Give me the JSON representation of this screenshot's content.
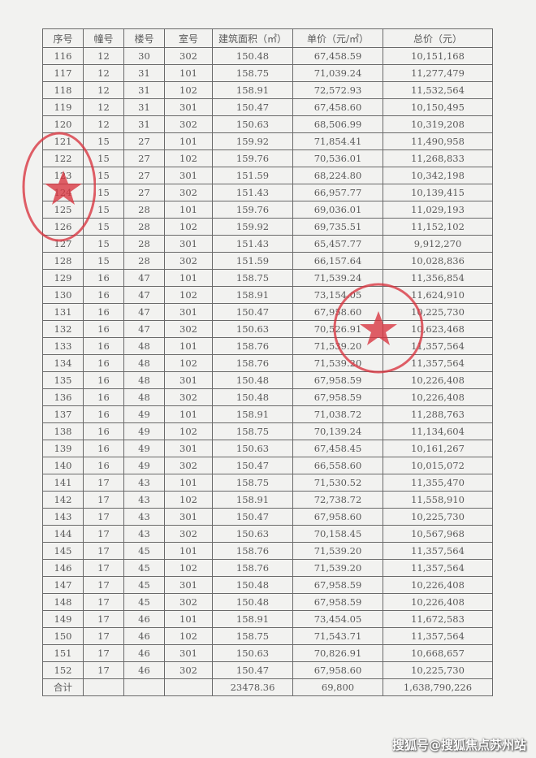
{
  "table": {
    "headers": [
      "序号",
      "幢号",
      "楼号",
      "室号",
      "建筑面积（㎡）",
      "单价（元/㎡）",
      "总价（元）"
    ],
    "rows": [
      [
        "116",
        "12",
        "30",
        "302",
        "150.48",
        "67,458.59",
        "10,151,168"
      ],
      [
        "117",
        "12",
        "31",
        "101",
        "158.75",
        "71,039.24",
        "11,277,479"
      ],
      [
        "118",
        "12",
        "31",
        "102",
        "158.91",
        "72,572.93",
        "11,532,564"
      ],
      [
        "119",
        "12",
        "31",
        "301",
        "150.47",
        "67,458.60",
        "10,150,495"
      ],
      [
        "120",
        "12",
        "31",
        "302",
        "150.63",
        "68,506.99",
        "10,319,208"
      ],
      [
        "121",
        "15",
        "27",
        "101",
        "159.92",
        "71,854.41",
        "11,490,958"
      ],
      [
        "122",
        "15",
        "27",
        "102",
        "159.76",
        "70,536.01",
        "11,268,833"
      ],
      [
        "123",
        "15",
        "27",
        "301",
        "151.59",
        "68,224.80",
        "10,342,198"
      ],
      [
        "124",
        "15",
        "27",
        "302",
        "151.43",
        "66,957.77",
        "10,139,415"
      ],
      [
        "125",
        "15",
        "28",
        "101",
        "159.76",
        "69,036.01",
        "11,029,193"
      ],
      [
        "126",
        "15",
        "28",
        "102",
        "159.92",
        "69,735.51",
        "11,152,102"
      ],
      [
        "127",
        "15",
        "28",
        "301",
        "151.43",
        "65,457.77",
        "9,912,270"
      ],
      [
        "128",
        "15",
        "28",
        "302",
        "151.59",
        "66,157.64",
        "10,028,836"
      ],
      [
        "129",
        "16",
        "47",
        "101",
        "158.75",
        "71,539.24",
        "11,356,854"
      ],
      [
        "130",
        "16",
        "47",
        "102",
        "158.91",
        "73,154.05",
        "11,624,910"
      ],
      [
        "131",
        "16",
        "47",
        "301",
        "150.47",
        "67,958.60",
        "10,225,730"
      ],
      [
        "132",
        "16",
        "47",
        "302",
        "150.63",
        "70,526.91",
        "10,623,468"
      ],
      [
        "133",
        "16",
        "48",
        "101",
        "158.76",
        "71,539.20",
        "11,357,564"
      ],
      [
        "134",
        "16",
        "48",
        "102",
        "158.76",
        "71,539.20",
        "11,357,564"
      ],
      [
        "135",
        "16",
        "48",
        "301",
        "150.48",
        "67,958.59",
        "10,226,408"
      ],
      [
        "136",
        "16",
        "48",
        "302",
        "150.48",
        "67,958.59",
        "10,226,408"
      ],
      [
        "137",
        "16",
        "49",
        "101",
        "158.91",
        "71,038.72",
        "11,288,763"
      ],
      [
        "138",
        "16",
        "49",
        "102",
        "158.75",
        "70,139.24",
        "11,134,604"
      ],
      [
        "139",
        "16",
        "49",
        "301",
        "150.63",
        "67,458.45",
        "10,161,267"
      ],
      [
        "140",
        "16",
        "49",
        "302",
        "150.47",
        "66,558.60",
        "10,015,072"
      ],
      [
        "141",
        "17",
        "43",
        "101",
        "158.75",
        "71,530.52",
        "11,355,470"
      ],
      [
        "142",
        "17",
        "43",
        "102",
        "158.91",
        "72,738.72",
        "11,558,910"
      ],
      [
        "143",
        "17",
        "43",
        "301",
        "150.47",
        "67,958.60",
        "10,225,730"
      ],
      [
        "144",
        "17",
        "43",
        "302",
        "150.63",
        "70,158.45",
        "10,567,968"
      ],
      [
        "145",
        "17",
        "45",
        "101",
        "158.76",
        "71,539.20",
        "11,357,564"
      ],
      [
        "146",
        "17",
        "45",
        "102",
        "158.76",
        "71,539.20",
        "11,357,564"
      ],
      [
        "147",
        "17",
        "45",
        "301",
        "150.48",
        "67,958.59",
        "10,226,408"
      ],
      [
        "148",
        "17",
        "45",
        "302",
        "150.48",
        "67,958.59",
        "10,226,408"
      ],
      [
        "149",
        "17",
        "46",
        "101",
        "158.91",
        "73,454.05",
        "11,672,583"
      ],
      [
        "150",
        "17",
        "46",
        "102",
        "158.75",
        "71,543.71",
        "11,357,564"
      ],
      [
        "151",
        "17",
        "46",
        "301",
        "150.63",
        "70,826.91",
        "10,668,657"
      ],
      [
        "152",
        "17",
        "46",
        "302",
        "150.47",
        "67,958.60",
        "10,225,730"
      ]
    ],
    "total": [
      "合计",
      "",
      "",
      "",
      "23478.36",
      "69,800",
      "1,638,790,226"
    ]
  },
  "stamp_color": "#d9343f",
  "watermark": "搜狐号@搜狐焦点苏州站"
}
